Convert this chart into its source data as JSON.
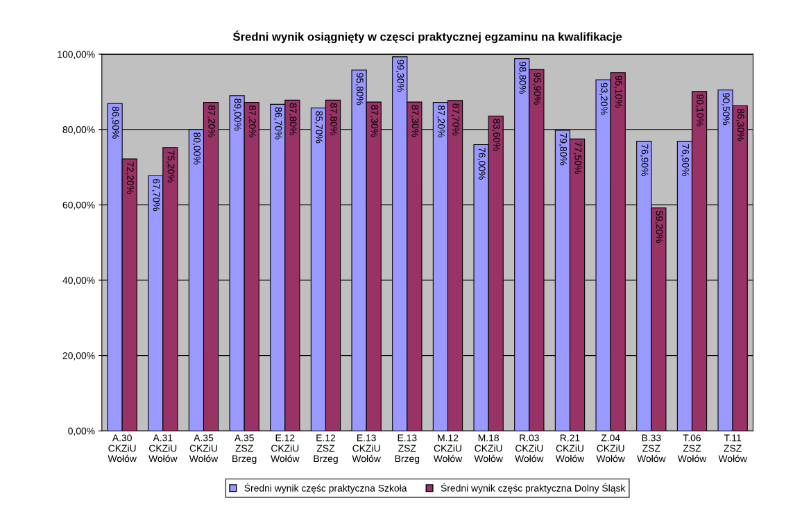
{
  "chart_data": {
    "type": "bar",
    "title": "Średni wynik osiągnięty w częsci praktycznej egzaminu na kwalifikacje",
    "categories": [
      "A.30\nCKZiU\nWołów",
      "A.31\nCKZiU\nWołów",
      "A.35\nCKZiU\nWołów",
      "A.35\nZSZ\nBrzeg",
      "E.12\nCKZiU\nWołów",
      "E.12\nZSZ\nBrzeg",
      "E.13\nCKZiU\nWołów",
      "E.13\nZSZ\nBrzeg",
      "M.12\nCKZiU\nWołów",
      "M.18\nCKZiU\nWołów",
      "R.03\nCKZiU\nWołów",
      "R.21\nCKZiU\nWołów",
      "Z.04\nCKZiU\nWołów",
      "B.33\nZSZ\nWołów",
      "T.06\nZSZ\nWołów",
      "T.11\nZSZ\nWołów"
    ],
    "series": [
      {
        "name": "Średni wynik częśc praktyczna Szkoła",
        "color": "#9999ff",
        "values": [
          86.9,
          67.7,
          80.0,
          89.0,
          86.7,
          85.7,
          95.8,
          99.3,
          87.2,
          76.0,
          98.8,
          79.8,
          93.2,
          76.9,
          76.9,
          90.5
        ],
        "value_labels": [
          "86,90%",
          "67,70%",
          "80,00%",
          "89,00%",
          "86,70%",
          "85,70%",
          "95,80%",
          "99,30%",
          "87,20%",
          "76,00%",
          "98,80%",
          "79,80%",
          "93,20%",
          "76,90%",
          "76,90%",
          "90,50%"
        ]
      },
      {
        "name": "Średni wynik częśc praktyczna Dolny Śląsk",
        "color": "#993366",
        "values": [
          72.2,
          75.2,
          87.2,
          87.2,
          87.8,
          87.8,
          87.3,
          87.3,
          87.7,
          83.6,
          95.9,
          77.5,
          95.1,
          59.2,
          90.1,
          86.3
        ],
        "value_labels": [
          "72,20%",
          "75,20%",
          "87,20%",
          "87,20%",
          "87,80%",
          "87,80%",
          "87,30%",
          "87,30%",
          "87,70%",
          "83,60%",
          "95,90%",
          "77,50%",
          "95,10%",
          "59,20%",
          "90,10%",
          "86,30%"
        ]
      }
    ],
    "ylim": [
      0,
      100
    ],
    "yticks": [
      {
        "value": 0,
        "label": "0,00%"
      },
      {
        "value": 20,
        "label": "20,00%"
      },
      {
        "value": 40,
        "label": "40,00%"
      },
      {
        "value": 60,
        "label": "60,00%"
      },
      {
        "value": 80,
        "label": "80,00%"
      },
      {
        "value": 100,
        "label": "100,00%"
      }
    ],
    "grid": "y",
    "legend": "bottom"
  }
}
